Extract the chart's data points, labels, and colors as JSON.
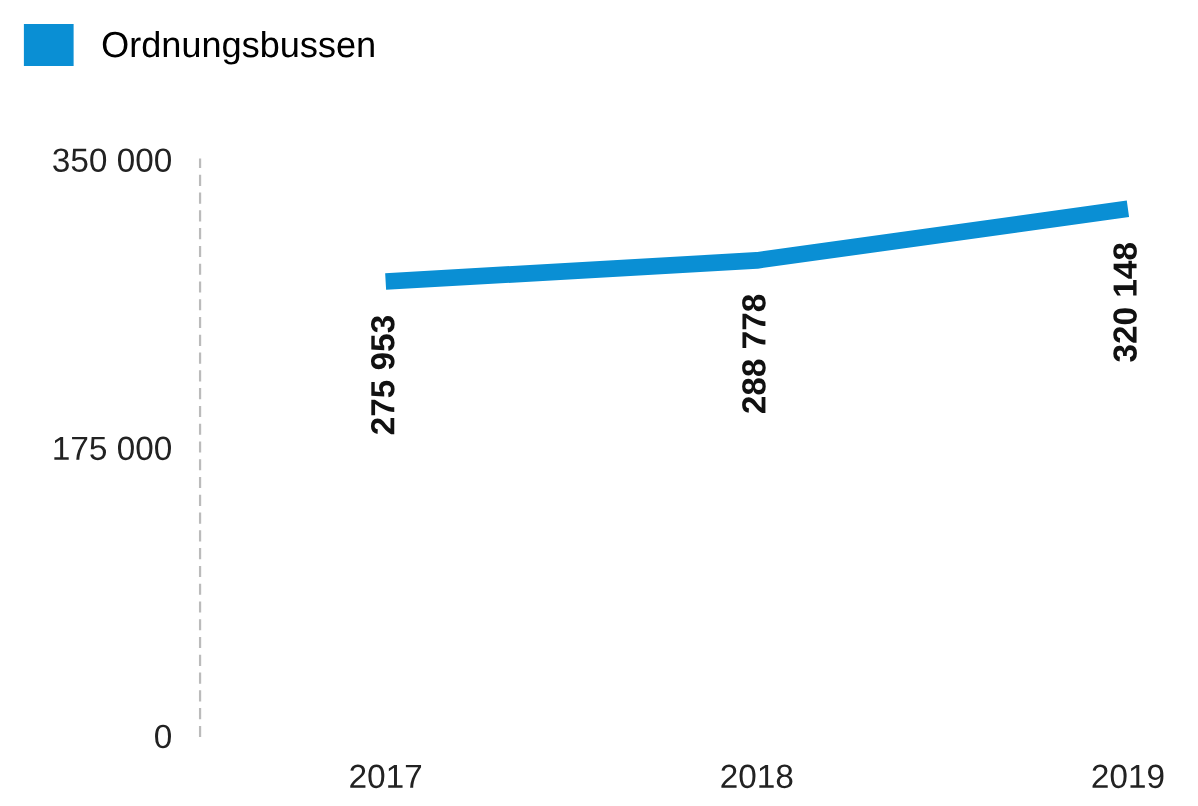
{
  "chart_data": {
    "type": "line",
    "categories": [
      "2017",
      "2018",
      "2019"
    ],
    "series": [
      {
        "name": "Ordnungsbussen",
        "color": "#0a8fd4",
        "values": [
          275953,
          288778,
          320148
        ],
        "value_labels": [
          "275 953",
          "288 778",
          "320 148"
        ]
      }
    ],
    "ylim": [
      0,
      350000
    ],
    "yticks": [
      {
        "value": 0,
        "label": "0"
      },
      {
        "value": 175000,
        "label": "175 000"
      },
      {
        "value": 350000,
        "label": "350 000"
      }
    ],
    "grid": false,
    "legend": "top left",
    "marker": "none",
    "line_style": "solid"
  }
}
